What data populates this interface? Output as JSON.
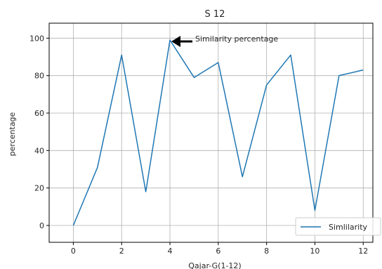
{
  "chart_data": {
    "type": "line",
    "title": "S 12",
    "xlabel": "Qajar-G(1-12)",
    "ylabel": "percentage",
    "x": [
      0,
      1,
      2,
      3,
      4,
      5,
      6,
      7,
      8,
      9,
      10,
      11,
      12
    ],
    "series": [
      {
        "name": "Simlilarity",
        "values": [
          0,
          31,
          91,
          18,
          99,
          79,
          87,
          26,
          75,
          91,
          8,
          80,
          83
        ],
        "color": "#1f77b4"
      }
    ],
    "xlim": [
      -1,
      12.4
    ],
    "ylim": [
      -9,
      108
    ],
    "xticks": [
      0,
      2,
      4,
      6,
      8,
      10,
      12
    ],
    "yticks": [
      0,
      20,
      40,
      60,
      80,
      100
    ],
    "grid": true,
    "legend": {
      "position": "lower-right"
    },
    "annotations": [
      {
        "text": "Similarity percentage",
        "x": 4,
        "y": 99,
        "arrow": true
      }
    ]
  }
}
